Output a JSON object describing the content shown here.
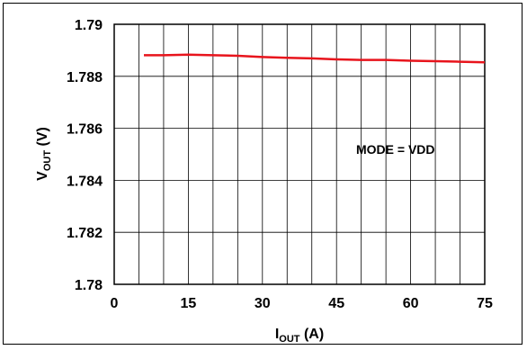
{
  "chart_data": {
    "type": "line",
    "title": "",
    "xlabel_main": "I",
    "xlabel_sub": "OUT",
    "xlabel_unit": " (A)",
    "ylabel_main": "V",
    "ylabel_sub": "OUT",
    "ylabel_unit": " (V)",
    "annotation": "MODE = VDD",
    "xlim": [
      0,
      75
    ],
    "ylim": [
      1.78,
      1.79
    ],
    "x_ticks": [
      0,
      15,
      30,
      45,
      60,
      75
    ],
    "x_tick_labels": [
      "0",
      "15",
      "30",
      "45",
      "60",
      "75"
    ],
    "y_ticks": [
      1.78,
      1.782,
      1.784,
      1.786,
      1.788,
      1.79
    ],
    "y_tick_labels": [
      "1.78",
      "1.782",
      "1.784",
      "1.786",
      "1.788",
      "1.79"
    ],
    "x_grid_step": 5,
    "grid": true,
    "series": [
      {
        "color": "#e8141c",
        "x": [
          6,
          10,
          15,
          20,
          25,
          30,
          35,
          40,
          45,
          50,
          55,
          60,
          65,
          70,
          75
        ],
        "y": [
          1.78881,
          1.78881,
          1.78883,
          1.78881,
          1.78879,
          1.78874,
          1.78871,
          1.78869,
          1.78865,
          1.78863,
          1.78863,
          1.7886,
          1.78858,
          1.78856,
          1.78854
        ]
      }
    ]
  }
}
